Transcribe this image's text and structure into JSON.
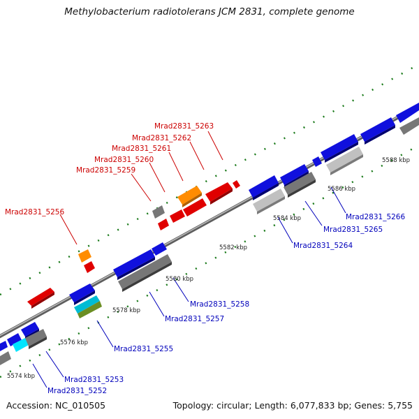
{
  "title": "Methylobacterium radiotolerans JCM 2831, complete genome",
  "footer": {
    "accession": "Accession: NC_010505",
    "summary": "Topology: circular; Length: 6,077,833 bp; Genes: 5,755"
  },
  "colors": {
    "forward_label": "#cc0000",
    "reverse_label": "#0000bb",
    "backbone": "#8c8c8c",
    "tick": "#1a7a1a"
  },
  "scale_labels": [
    "5574 kbp",
    "5576 kbp",
    "5578 kbp",
    "5580 kbp",
    "5582 kbp",
    "5584 kbp",
    "5586 kbp",
    "5588 kbp"
  ],
  "forward_labels": [
    "Mrad2831_5263",
    "Mrad2831_5262",
    "Mrad2831_5261",
    "Mrad2831_5260",
    "Mrad2831_5259",
    "Mrad2831_5256"
  ],
  "reverse_labels": [
    "Mrad2831_5266",
    "Mrad2831_5265",
    "Mrad2831_5264",
    "Mrad2831_5258",
    "Mrad2831_5257",
    "Mrad2831_5255",
    "Mrad2831_5253",
    "Mrad2831_5252"
  ]
}
